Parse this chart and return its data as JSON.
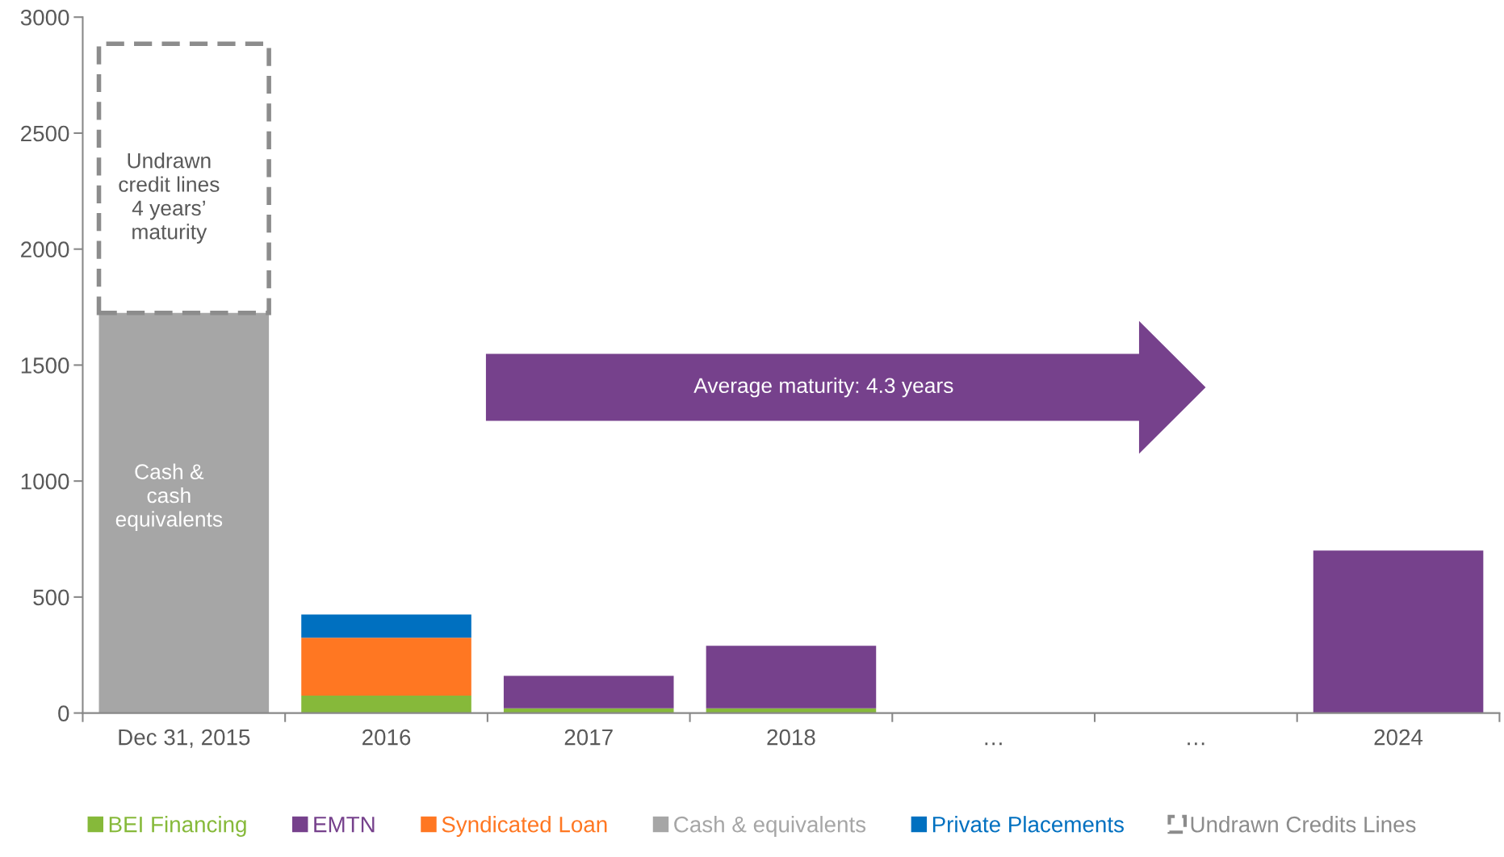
{
  "chart_data": {
    "type": "bar",
    "stacked": true,
    "categories": [
      "Dec 31, 2015",
      "2016",
      "2017",
      "2018",
      "…",
      "…",
      "2024"
    ],
    "series": [
      {
        "name": "BEI Financing",
        "color": "#86b93a",
        "values": [
          null,
          75,
          20,
          20,
          null,
          null,
          null
        ]
      },
      {
        "name": "EMTN",
        "color": "#76418c",
        "values": [
          null,
          null,
          140,
          270,
          null,
          null,
          700
        ]
      },
      {
        "name": "Syndicated Loan",
        "color": "#ff7722",
        "values": [
          null,
          250,
          null,
          null,
          null,
          null,
          null
        ]
      },
      {
        "name": "Cash & equivalents",
        "color": "#a6a6a6",
        "values": [
          1725,
          null,
          null,
          null,
          null,
          null,
          null
        ]
      },
      {
        "name": "Private Placements",
        "color": "#0070c0",
        "values": [
          null,
          100,
          null,
          null,
          null,
          null,
          null
        ]
      },
      {
        "name": "Undrawn Credits Lines",
        "color": "#8c8c8c",
        "line_style": "dashed",
        "values": [
          1160,
          null,
          null,
          null,
          null,
          null,
          null
        ]
      }
    ],
    "ylim": [
      0,
      3000
    ],
    "yticks": [
      0,
      500,
      1000,
      1500,
      2000,
      2500,
      3000
    ],
    "grid": false,
    "legend": "bottom",
    "annotations": [
      "Undrawn\ncredit lines\n4 years’\nmaturity",
      "Cash &\ncash\nequivalents",
      "Average maturity: 4.3 years"
    ]
  }
}
